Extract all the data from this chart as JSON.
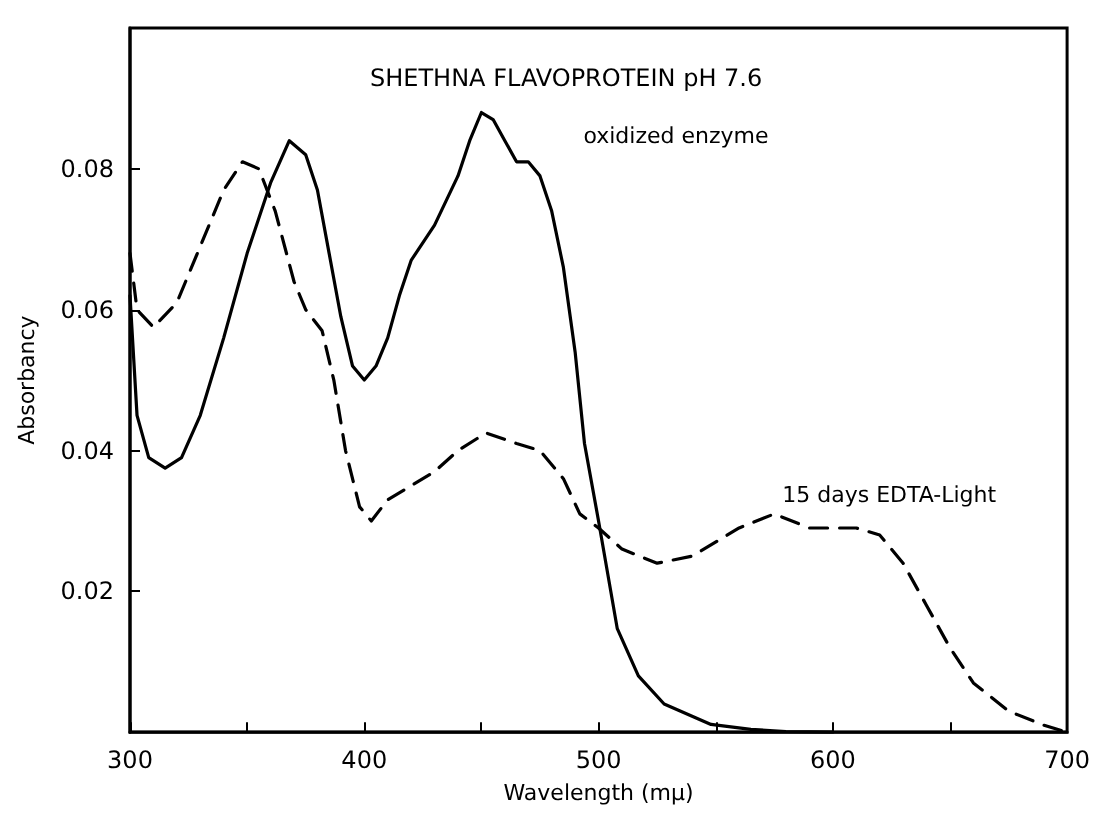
{
  "chart_data": {
    "type": "line",
    "title": "SHETHNA FLAVOPROTEIN pH 7.6",
    "xlabel": "Wavelength (mμ)",
    "ylabel": "Absorbancy",
    "xlim": [
      300,
      700
    ],
    "xticks": [
      300,
      {
        "value": 350,
        "label": null
      },
      400,
      {
        "value": 450,
        "label": null
      },
      500,
      {
        "value": 550,
        "label": null
      },
      600,
      {
        "value": 650,
        "label": null
      },
      700
    ],
    "ylim": [
      0,
      0.1
    ],
    "yticks": [
      0.02,
      0.04,
      0.06,
      0.08
    ],
    "grid": false,
    "marker": "none",
    "series": [
      {
        "name": "oxidized enzyme",
        "color": "#000000",
        "line_style": "solid",
        "x": [
          300,
          303,
          308,
          315,
          322,
          330,
          340,
          350,
          360,
          368,
          375,
          380,
          385,
          390,
          395,
          400,
          405,
          410,
          415,
          420,
          430,
          440,
          445,
          450,
          455,
          460,
          465,
          470,
          475,
          480,
          485,
          490,
          494,
          500,
          508,
          517,
          528,
          548,
          565,
          580,
          600
        ],
        "values": [
          0.062,
          0.045,
          0.039,
          0.0375,
          0.039,
          0.045,
          0.056,
          0.068,
          0.078,
          0.084,
          0.082,
          0.077,
          0.068,
          0.059,
          0.052,
          0.05,
          0.052,
          0.056,
          0.062,
          0.067,
          0.072,
          0.079,
          0.084,
          0.088,
          0.087,
          0.084,
          0.081,
          0.081,
          0.079,
          0.074,
          0.066,
          0.054,
          0.041,
          0.03,
          0.0147,
          0.008,
          0.004,
          0.0011,
          0.0004,
          0.0001,
          0.0
        ]
      },
      {
        "name": "15 days EDTA-Light",
        "color": "#000000",
        "line_style": "dashed",
        "x": [
          300,
          303,
          310,
          320,
          330,
          340,
          348,
          355,
          362,
          370,
          375,
          382,
          387,
          392,
          398,
          403,
          410,
          420,
          430,
          440,
          452,
          465,
          475,
          485,
          492,
          500,
          510,
          525,
          540,
          560,
          575,
          590,
          610,
          620,
          630,
          640,
          650,
          660,
          675,
          690,
          700
        ],
        "values": [
          0.068,
          0.06,
          0.0575,
          0.061,
          0.069,
          0.077,
          0.081,
          0.08,
          0.074,
          0.064,
          0.06,
          0.057,
          0.05,
          0.04,
          0.032,
          0.03,
          0.033,
          0.035,
          0.037,
          0.04,
          0.0425,
          0.041,
          0.04,
          0.036,
          0.031,
          0.029,
          0.026,
          0.024,
          0.025,
          0.029,
          0.031,
          0.029,
          0.029,
          0.028,
          0.024,
          0.018,
          0.012,
          0.007,
          0.003,
          0.001,
          0.0
        ]
      }
    ]
  }
}
